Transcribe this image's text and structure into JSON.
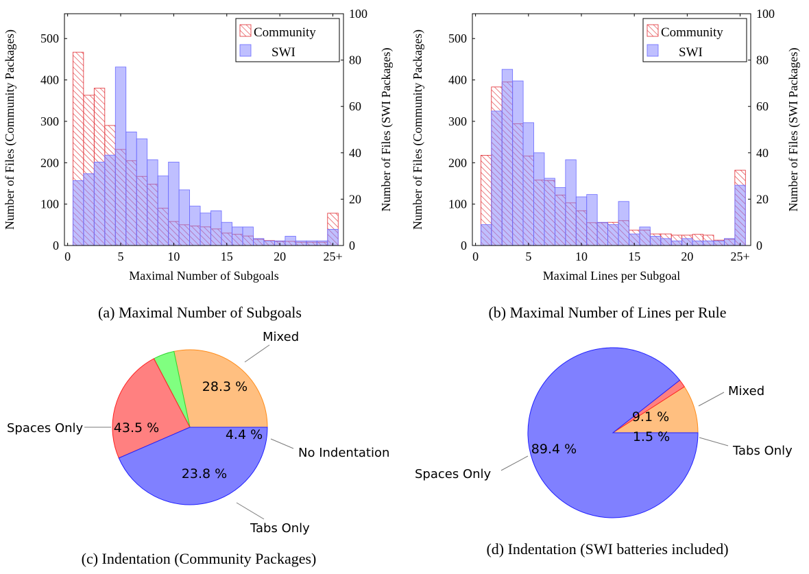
{
  "chart_data": [
    {
      "id": "a",
      "type": "bar",
      "caption": "(a) Maximal Number of Subgoals",
      "xlabel": "Maximal Number of Subgoals",
      "ylabel_left": "Number of Files (Community Packages)",
      "ylabel_right": "Number of Files (SWI Packages)",
      "xlim": [
        -0.3,
        26.0
      ],
      "ylim_left": [
        0,
        560
      ],
      "ylim_right": [
        0,
        100
      ],
      "x_ticks": [
        "0",
        "5",
        "10",
        "15",
        "20",
        "25+"
      ],
      "y_left_ticks": [
        0,
        100,
        200,
        300,
        400,
        500
      ],
      "y_right_ticks": [
        0,
        20,
        40,
        60,
        80,
        100
      ],
      "legend_position": "top-right",
      "categories": [
        1,
        2,
        3,
        4,
        5,
        6,
        7,
        8,
        9,
        10,
        11,
        12,
        13,
        14,
        15,
        16,
        17,
        18,
        19,
        20,
        21,
        22,
        23,
        24,
        25
      ],
      "series": [
        {
          "name": "Community",
          "axis": "left",
          "color": "#e0282e",
          "values": [
            467,
            363,
            380,
            290,
            232,
            205,
            167,
            148,
            90,
            58,
            50,
            47,
            45,
            40,
            30,
            27,
            23,
            15,
            12,
            10,
            10,
            8,
            8,
            8,
            78
          ]
        },
        {
          "name": "SWI",
          "axis": "right",
          "color": "#8080ff",
          "values": [
            28,
            31,
            36,
            39,
            77,
            49,
            46,
            37,
            30,
            36,
            24,
            17,
            14,
            15,
            10,
            8,
            8,
            3,
            2,
            2,
            4,
            2,
            2,
            2,
            7
          ]
        }
      ]
    },
    {
      "id": "b",
      "type": "bar",
      "caption": "(b) Maximal Number of Lines per Rule",
      "xlabel": "Maximal Lines per Subgoal",
      "ylabel_left": "Number of Files (Community Packages)",
      "ylabel_right": "Number of Files (SWI Packages)",
      "xlim": [
        -0.3,
        26.0
      ],
      "ylim_left": [
        0,
        560
      ],
      "ylim_right": [
        0,
        100
      ],
      "x_ticks": [
        "0",
        "5",
        "10",
        "15",
        "20",
        "25+"
      ],
      "y_left_ticks": [
        0,
        100,
        200,
        300,
        400,
        500
      ],
      "y_right_ticks": [
        0,
        20,
        40,
        60,
        80,
        100
      ],
      "legend_position": "top-right",
      "categories": [
        1,
        2,
        3,
        4,
        5,
        6,
        7,
        8,
        9,
        10,
        11,
        12,
        13,
        14,
        15,
        16,
        17,
        18,
        19,
        20,
        21,
        22,
        23,
        24,
        25
      ],
      "series": [
        {
          "name": "Community",
          "axis": "left",
          "color": "#e0282e",
          "values": [
            218,
            383,
            395,
            294,
            216,
            158,
            157,
            122,
            103,
            84,
            55,
            55,
            56,
            60,
            37,
            37,
            28,
            28,
            25,
            25,
            27,
            25,
            13,
            15,
            182
          ]
        },
        {
          "name": "SWI",
          "axis": "right",
          "color": "#8080ff",
          "values": [
            9,
            58,
            76,
            71,
            53,
            40,
            29,
            25,
            37,
            21,
            22,
            10,
            9,
            19,
            5,
            8,
            4,
            3,
            2,
            3,
            2,
            2,
            2,
            3,
            26
          ]
        }
      ]
    },
    {
      "id": "c",
      "type": "pie",
      "caption": "(c) Indentation (Community Packages)",
      "slices": [
        {
          "label": "Mixed",
          "value": 28.3,
          "pct_label": "28.3 %",
          "color": "#ffbf80"
        },
        {
          "label": "No Indentation",
          "value": 4.4,
          "pct_label": "4.4 %",
          "color": "#80ff80"
        },
        {
          "label": "Tabs Only",
          "value": 23.8,
          "pct_label": "23.8 %",
          "color": "#ff8080"
        },
        {
          "label": "Spaces Only",
          "value": 43.5,
          "pct_label": "43.5 %",
          "color": "#8080ff"
        }
      ]
    },
    {
      "id": "d",
      "type": "pie",
      "caption": "(d) Indentation (SWI batteries included)",
      "slices": [
        {
          "label": "Mixed",
          "value": 9.1,
          "pct_label": "9.1 %",
          "color": "#ffbf80"
        },
        {
          "label": "Tabs Only",
          "value": 1.5,
          "pct_label": "1.5 %",
          "color": "#ff8080"
        },
        {
          "label": "Spaces Only",
          "value": 89.4,
          "pct_label": "89.4 %",
          "color": "#8080ff"
        }
      ]
    }
  ]
}
